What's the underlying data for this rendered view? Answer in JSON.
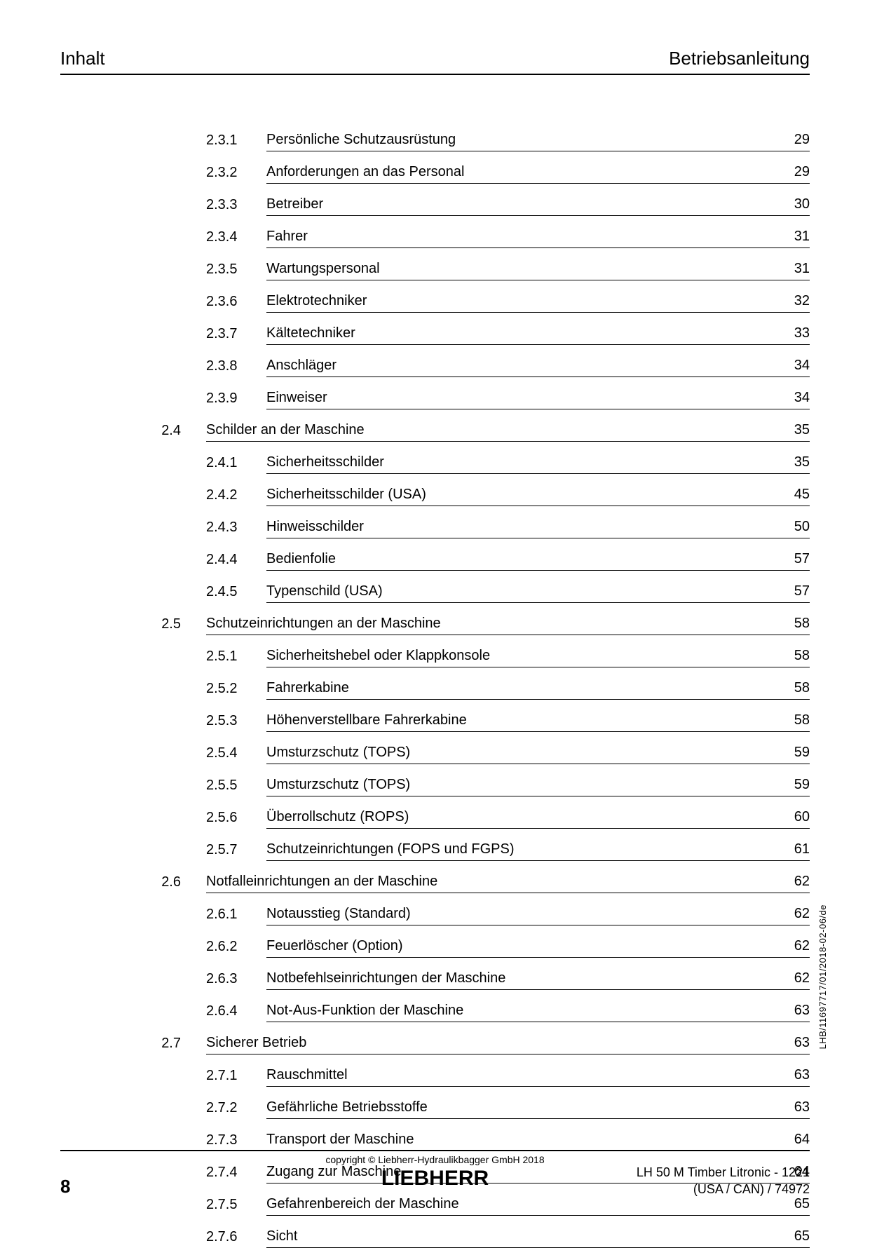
{
  "header": {
    "left": "Inhalt",
    "right": "Betriebsanleitung"
  },
  "toc": [
    {
      "level": "sub",
      "num": "2.3.1",
      "title": "Persönliche Schutzausrüstung",
      "page": "29"
    },
    {
      "level": "sub",
      "num": "2.3.2",
      "title": "Anforderungen an das Personal",
      "page": "29"
    },
    {
      "level": "sub",
      "num": "2.3.3",
      "title": "Betreiber",
      "page": "30"
    },
    {
      "level": "sub",
      "num": "2.3.4",
      "title": "Fahrer",
      "page": "31"
    },
    {
      "level": "sub",
      "num": "2.3.5",
      "title": "Wartungspersonal",
      "page": "31"
    },
    {
      "level": "sub",
      "num": "2.3.6",
      "title": "Elektrotechniker",
      "page": "32"
    },
    {
      "level": "sub",
      "num": "2.3.7",
      "title": "Kältetechniker",
      "page": "33"
    },
    {
      "level": "sub",
      "num": "2.3.8",
      "title": "Anschläger",
      "page": "34"
    },
    {
      "level": "sub",
      "num": "2.3.9",
      "title": "Einweiser",
      "page": "34"
    },
    {
      "level": "sec",
      "num": "2.4",
      "title": "Schilder an der Maschine",
      "page": "35"
    },
    {
      "level": "sub",
      "num": "2.4.1",
      "title": "Sicherheitsschilder",
      "page": "35"
    },
    {
      "level": "sub",
      "num": "2.4.2",
      "title": "Sicherheitsschilder (USA)",
      "page": "45"
    },
    {
      "level": "sub",
      "num": "2.4.3",
      "title": "Hinweisschilder",
      "page": "50"
    },
    {
      "level": "sub",
      "num": "2.4.4",
      "title": "Bedienfolie",
      "page": "57"
    },
    {
      "level": "sub",
      "num": "2.4.5",
      "title": "Typenschild (USA)",
      "page": "57"
    },
    {
      "level": "sec",
      "num": "2.5",
      "title": "Schutzeinrichtungen an der Maschine",
      "page": "58"
    },
    {
      "level": "sub",
      "num": "2.5.1",
      "title": "Sicherheitshebel oder Klappkonsole",
      "page": "58"
    },
    {
      "level": "sub",
      "num": "2.5.2",
      "title": "Fahrerkabine",
      "page": "58"
    },
    {
      "level": "sub",
      "num": "2.5.3",
      "title": "Höhenverstellbare Fahrerkabine",
      "page": "58"
    },
    {
      "level": "sub",
      "num": "2.5.4",
      "title": "Umsturzschutz (TOPS)",
      "page": "59"
    },
    {
      "level": "sub",
      "num": "2.5.5",
      "title": "Umsturzschutz (TOPS)",
      "page": "59"
    },
    {
      "level": "sub",
      "num": "2.5.6",
      "title": "Überrollschutz (ROPS)",
      "page": "60"
    },
    {
      "level": "sub",
      "num": "2.5.7",
      "title": "Schutzeinrichtungen (FOPS und FGPS)",
      "page": "61"
    },
    {
      "level": "sec",
      "num": "2.6",
      "title": "Notfalleinrichtungen an der Maschine",
      "page": "62"
    },
    {
      "level": "sub",
      "num": "2.6.1",
      "title": "Notausstieg (Standard)",
      "page": "62"
    },
    {
      "level": "sub",
      "num": "2.6.2",
      "title": "Feuerlöscher (Option)",
      "page": "62"
    },
    {
      "level": "sub",
      "num": "2.6.3",
      "title": "Notbefehlseinrichtungen der Maschine",
      "page": "62"
    },
    {
      "level": "sub",
      "num": "2.6.4",
      "title": "Not-Aus-Funktion der Maschine",
      "page": "63"
    },
    {
      "level": "sec",
      "num": "2.7",
      "title": "Sicherer Betrieb",
      "page": "63"
    },
    {
      "level": "sub",
      "num": "2.7.1",
      "title": "Rauschmittel",
      "page": "63"
    },
    {
      "level": "sub",
      "num": "2.7.2",
      "title": "Gefährliche Betriebsstoffe",
      "page": "63"
    },
    {
      "level": "sub",
      "num": "2.7.3",
      "title": "Transport der Maschine",
      "page": "64"
    },
    {
      "level": "sub",
      "num": "2.7.4",
      "title": "Zugang zur Maschine",
      "page": "64"
    },
    {
      "level": "sub",
      "num": "2.7.5",
      "title": "Gefahrenbereich der Maschine",
      "page": "65"
    },
    {
      "level": "sub",
      "num": "2.7.6",
      "title": "Sicht",
      "page": "65"
    }
  ],
  "side_text": "LHB/11697717/01/2018-02-06/de",
  "footer": {
    "page_number": "8",
    "copyright": "copyright © Liebherr-Hydraulikbagger GmbH 2018",
    "logo": "LIEBHERR",
    "right_line1": "LH 50 M Timber Litronic  - 1221",
    "right_line2": "(USA / CAN) / 74972"
  }
}
